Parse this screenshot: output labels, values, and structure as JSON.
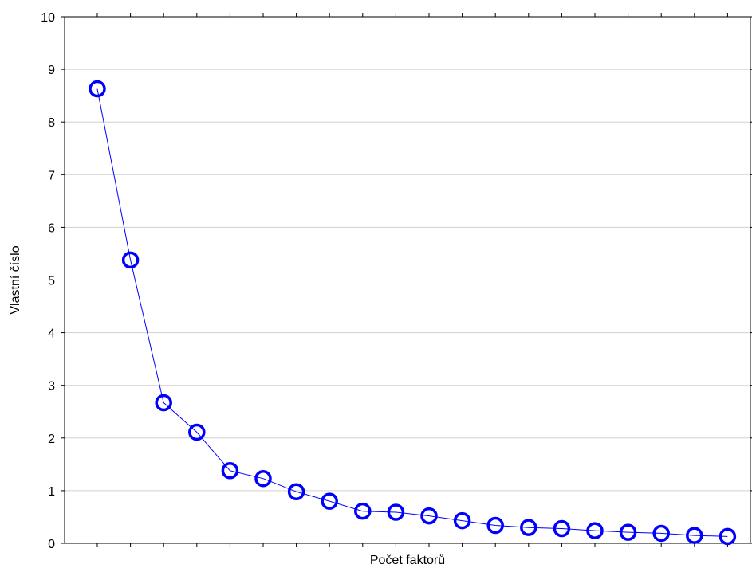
{
  "chart_data": {
    "type": "line",
    "title": "",
    "xlabel": "Počet faktorů",
    "ylabel": "Vlastní číslo",
    "ylim": [
      0,
      10
    ],
    "yticks": [
      0,
      1,
      2,
      3,
      4,
      5,
      6,
      7,
      8,
      9,
      10
    ],
    "xlim": [
      0,
      20
    ],
    "grid": true,
    "series": [
      {
        "x": [
          1,
          2,
          3,
          4,
          5,
          6,
          7,
          8,
          9,
          10,
          11,
          12,
          13,
          14,
          15,
          16,
          17,
          18,
          19,
          20
        ],
        "values": [
          8.63,
          5.38,
          2.67,
          2.11,
          1.38,
          1.23,
          0.98,
          0.8,
          0.61,
          0.59,
          0.52,
          0.43,
          0.34,
          0.3,
          0.28,
          0.24,
          0.21,
          0.19,
          0.15,
          0.13
        ],
        "color": "#0000ff",
        "marker": "open-circle"
      }
    ]
  }
}
